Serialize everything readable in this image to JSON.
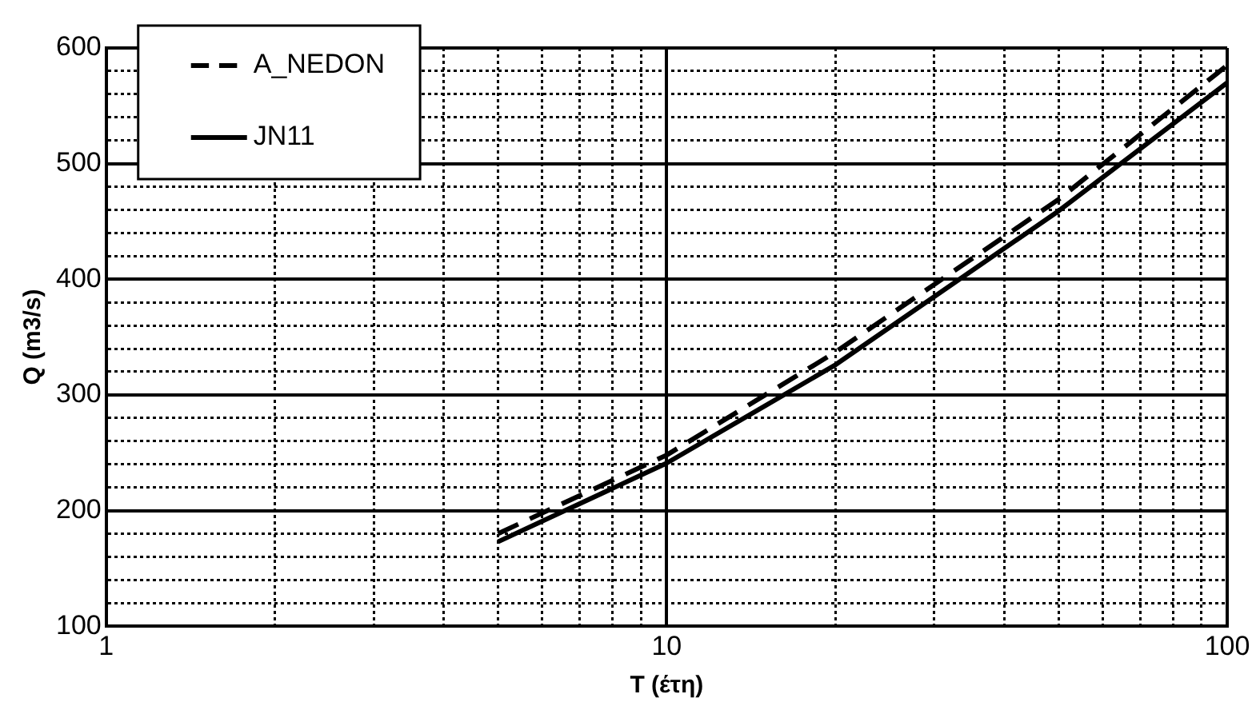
{
  "chart_data": {
    "type": "line",
    "xlabel": "T (έτη)",
    "ylabel": "Q (m3/s)",
    "log": "x",
    "xlim": [
      1,
      100
    ],
    "xticks": [
      1,
      {
        "value": 2,
        "label": null
      },
      {
        "value": 3,
        "label": null
      },
      {
        "value": 4,
        "label": null
      },
      {
        "value": 5,
        "label": null
      },
      {
        "value": 6,
        "label": null
      },
      {
        "value": 7,
        "label": null
      },
      {
        "value": 8,
        "label": null
      },
      {
        "value": 9,
        "label": null
      },
      10,
      {
        "value": 20,
        "label": null
      },
      {
        "value": 30,
        "label": null
      },
      {
        "value": 40,
        "label": null
      },
      {
        "value": 50,
        "label": null
      },
      {
        "value": 60,
        "label": null
      },
      {
        "value": 70,
        "label": null
      },
      {
        "value": 80,
        "label": null
      },
      {
        "value": 90,
        "label": null
      },
      100
    ],
    "ylim": [
      100,
      600
    ],
    "yticks": [
      100,
      {
        "value": 120,
        "label": null
      },
      {
        "value": 140,
        "label": null
      },
      {
        "value": 160,
        "label": null
      },
      {
        "value": 180,
        "label": null
      },
      200,
      {
        "value": 220,
        "label": null
      },
      {
        "value": 240,
        "label": null
      },
      {
        "value": 260,
        "label": null
      },
      {
        "value": 280,
        "label": null
      },
      300,
      {
        "value": 320,
        "label": null
      },
      {
        "value": 340,
        "label": null
      },
      {
        "value": 360,
        "label": null
      },
      {
        "value": 380,
        "label": null
      },
      400,
      {
        "value": 420,
        "label": null
      },
      {
        "value": 440,
        "label": null
      },
      {
        "value": 460,
        "label": null
      },
      {
        "value": 480,
        "label": null
      },
      500,
      {
        "value": 520,
        "label": null
      },
      {
        "value": 540,
        "label": null
      },
      {
        "value": 560,
        "label": null
      },
      {
        "value": 580,
        "label": null
      },
      600
    ],
    "grid": true,
    "legend": "top left",
    "marker": "none",
    "x": [
      5,
      10,
      20,
      50,
      100
    ],
    "series": [
      {
        "name": "A_NEDON",
        "color": "#000000",
        "line_style": "dashed",
        "values": [
          180,
          248,
          337,
          469,
          585
        ]
      },
      {
        "name": "JN11",
        "color": "#000000",
        "line_style": "solid",
        "values": [
          173,
          241,
          326,
          459,
          570
        ]
      }
    ]
  }
}
